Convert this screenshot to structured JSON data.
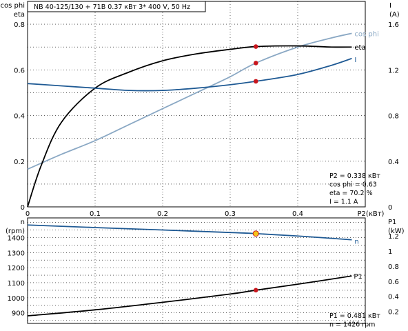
{
  "header": "NB 40-125/130 + 71B    0.37 кВт   3* 400 V, 50 Hz",
  "colors": {
    "eta": "#000000",
    "cosphi": "#8aa8c4",
    "current": "#1f5a94",
    "speed": "#1f5a94",
    "p1": "#000000",
    "marker": "#c8161d",
    "marker_highlight": "#f5c518",
    "frame": "#000000",
    "grid": "#000000"
  },
  "chart_data": [
    {
      "type": "line",
      "xlabel": "P2(кВт)",
      "xlim": [
        0,
        0.5
      ],
      "xticks": [
        "0",
        "0.1",
        "0.2",
        "0.3",
        "0.4"
      ],
      "y_left_label_top": "cos phi",
      "y_left_label_bottom": "eta",
      "ylim_left": [
        0,
        0.9
      ],
      "yticks_left": [
        "0",
        "0.2",
        "0.4",
        "0.6",
        "0.8"
      ],
      "y_right_label_top": "I",
      "y_right_label_bottom": "(A)",
      "ylim_right": [
        0,
        1.8
      ],
      "yticks_right": [
        "0",
        "0.4",
        "0.8",
        "1.2",
        "1.6"
      ],
      "series": [
        {
          "name": "cos phi",
          "axis": "left",
          "color_key": "cosphi",
          "x": [
            0,
            0.05,
            0.1,
            0.15,
            0.2,
            0.25,
            0.3,
            0.338,
            0.4,
            0.45,
            0.48
          ],
          "y": [
            0.165,
            0.23,
            0.29,
            0.36,
            0.43,
            0.5,
            0.57,
            0.63,
            0.7,
            0.74,
            0.76
          ]
        },
        {
          "name": "eta",
          "axis": "left",
          "color_key": "eta",
          "x": [
            0,
            0.02,
            0.05,
            0.1,
            0.15,
            0.2,
            0.25,
            0.3,
            0.338,
            0.4,
            0.45,
            0.48
          ],
          "y": [
            0,
            0.18,
            0.37,
            0.52,
            0.59,
            0.64,
            0.67,
            0.69,
            0.702,
            0.705,
            0.7,
            0.7
          ]
        },
        {
          "name": "I",
          "axis": "right",
          "color_key": "current",
          "x": [
            0,
            0.05,
            0.1,
            0.15,
            0.2,
            0.25,
            0.3,
            0.338,
            0.4,
            0.45,
            0.48
          ],
          "y": [
            1.08,
            1.06,
            1.04,
            1.02,
            1.02,
            1.04,
            1.07,
            1.1,
            1.16,
            1.24,
            1.3
          ]
        }
      ],
      "duty_point": {
        "x": 0.338,
        "eta": 0.702,
        "cosphi": 0.63,
        "current": 1.1
      },
      "annotation": [
        "P2  = 0.338 кВт",
        "cos phi = 0.63",
        "eta  = 70.2 %",
        "I   = 1.1 A"
      ]
    },
    {
      "type": "line",
      "xlim": [
        0,
        0.5
      ],
      "y_left_label_top": "n",
      "y_left_label_bottom": "(rpm)",
      "ylim_left": [
        830,
        1530
      ],
      "yticks_left": [
        "900",
        "1000",
        "1100",
        "1200",
        "1300",
        "1400"
      ],
      "y_right_label_top": "P1",
      "y_right_label_bottom": "(kW)",
      "ylim_right": [
        0.04,
        1.44
      ],
      "yticks_right": [
        "0.2",
        "0.4",
        "0.6",
        "0.8",
        "1",
        "1.2"
      ],
      "series": [
        {
          "name": "n",
          "axis": "left",
          "color_key": "speed",
          "x": [
            0,
            0.1,
            0.2,
            0.3,
            0.338,
            0.4,
            0.48
          ],
          "y": [
            1483,
            1466,
            1450,
            1433,
            1426,
            1410,
            1385
          ]
        },
        {
          "name": "P1",
          "axis": "right",
          "color_key": "p1",
          "x": [
            0,
            0.1,
            0.2,
            0.3,
            0.338,
            0.4,
            0.48
          ],
          "y": [
            0.14,
            0.22,
            0.32,
            0.43,
            0.481,
            0.56,
            0.67
          ]
        }
      ],
      "duty_point": {
        "x": 0.338,
        "n": 1426,
        "p1": 0.481
      },
      "annotation": [
        "P1  = 0.481 кВт",
        "n   = 1426 rpm"
      ]
    }
  ]
}
